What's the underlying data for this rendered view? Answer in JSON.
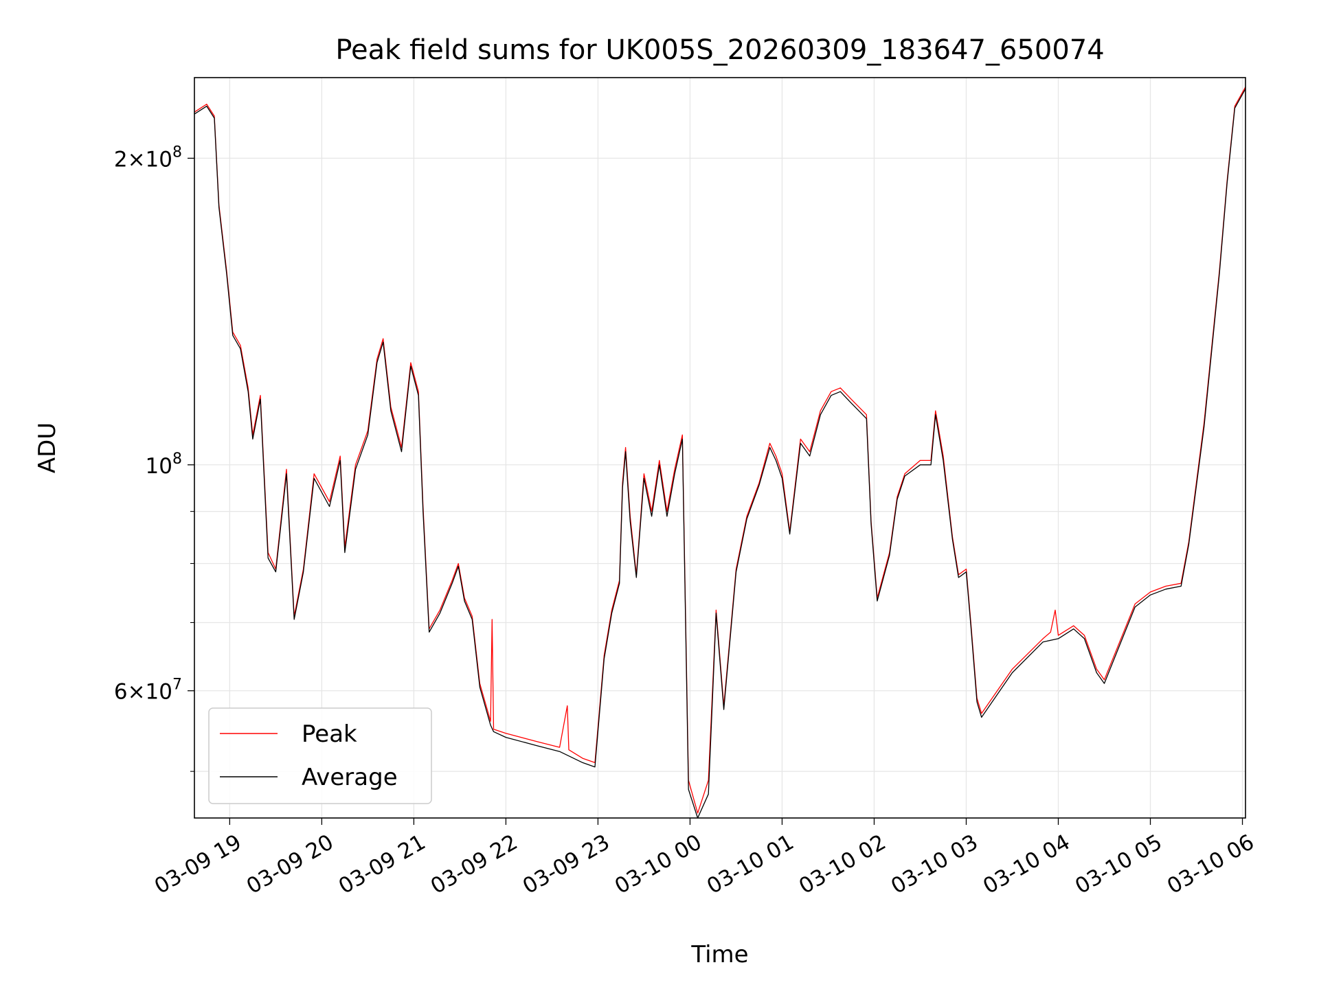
{
  "chart_data": {
    "type": "line",
    "title": "Peak field sums for UK005S_20260309_183647_650074",
    "xlabel": "Time",
    "ylabel": "ADU",
    "x_ticks": [
      "03-09 19",
      "03-09 20",
      "03-09 21",
      "03-09 22",
      "03-09 23",
      "03-10 00",
      "03-10 01",
      "03-10 02",
      "03-10 03",
      "03-10 04",
      "03-10 05",
      "03-10 06"
    ],
    "x_range": [
      "2026-03-09 18:37",
      "2026-03-10 06:02"
    ],
    "y_scale": "log",
    "y_range": [
      45000000,
      240000000
    ],
    "y_major_ticks": [
      {
        "value": 200000000,
        "mantissa": "2",
        "base": "10",
        "exp": "8"
      },
      {
        "value": 100000000,
        "mantissa": "",
        "base": "10",
        "exp": "8"
      },
      {
        "value": 60000000,
        "mantissa": "6",
        "base": "10",
        "exp": "7"
      }
    ],
    "y_minor_ticks": [
      50000000,
      70000000,
      80000000,
      90000000
    ],
    "grid": true,
    "legend_position": "lower-left",
    "series": [
      {
        "name": "Peak",
        "color": "#ff0000",
        "points": [
          [
            "2026-03-09 18:37",
            222000000
          ],
          [
            "2026-03-09 18:45",
            226000000
          ],
          [
            "2026-03-09 18:50",
            220000000
          ],
          [
            "2026-03-09 18:53",
            180000000
          ],
          [
            "2026-03-09 18:58",
            155000000
          ],
          [
            "2026-03-09 19:02",
            135000000
          ],
          [
            "2026-03-09 19:07",
            131000000
          ],
          [
            "2026-03-09 19:12",
            119000000
          ],
          [
            "2026-03-09 19:15",
            107000000
          ],
          [
            "2026-03-09 19:20",
            117000000
          ],
          [
            "2026-03-09 19:25",
            82000000
          ],
          [
            "2026-03-09 19:30",
            79000000
          ],
          [
            "2026-03-09 19:37",
            99000000
          ],
          [
            "2026-03-09 19:42",
            71000000
          ],
          [
            "2026-03-09 19:48",
            79000000
          ],
          [
            "2026-03-09 19:55",
            98000000
          ],
          [
            "2026-03-09 20:05",
            92000000
          ],
          [
            "2026-03-09 20:12",
            102000000
          ],
          [
            "2026-03-09 20:15",
            83000000
          ],
          [
            "2026-03-09 20:22",
            100000000
          ],
          [
            "2026-03-09 20:30",
            108000000
          ],
          [
            "2026-03-09 20:36",
            127000000
          ],
          [
            "2026-03-09 20:40",
            133000000
          ],
          [
            "2026-03-09 20:45",
            114000000
          ],
          [
            "2026-03-09 20:52",
            104000000
          ],
          [
            "2026-03-09 20:58",
            126000000
          ],
          [
            "2026-03-09 21:03",
            118000000
          ],
          [
            "2026-03-09 21:06",
            91000000
          ],
          [
            "2026-03-09 21:10",
            69000000
          ],
          [
            "2026-03-09 21:17",
            72000000
          ],
          [
            "2026-03-09 21:25",
            77000000
          ],
          [
            "2026-03-09 21:29",
            80000000
          ],
          [
            "2026-03-09 21:33",
            74000000
          ],
          [
            "2026-03-09 21:38",
            71000000
          ],
          [
            "2026-03-09 21:43",
            61000000
          ],
          [
            "2026-03-09 21:50",
            56000000
          ],
          [
            "2026-03-09 21:51",
            70500000
          ],
          [
            "2026-03-09 21:52",
            55000000
          ],
          [
            "2026-03-09 22:00",
            54500000
          ],
          [
            "2026-03-09 22:20",
            53500000
          ],
          [
            "2026-03-09 22:35",
            52800000
          ],
          [
            "2026-03-09 22:40",
            58000000
          ],
          [
            "2026-03-09 22:41",
            52500000
          ],
          [
            "2026-03-09 22:50",
            51500000
          ],
          [
            "2026-03-09 22:58",
            51000000
          ],
          [
            "2026-03-09 23:04",
            65000000
          ],
          [
            "2026-03-09 23:09",
            72000000
          ],
          [
            "2026-03-09 23:14",
            77000000
          ],
          [
            "2026-03-09 23:16",
            96000000
          ],
          [
            "2026-03-09 23:18",
            104000000
          ],
          [
            "2026-03-09 23:21",
            89000000
          ],
          [
            "2026-03-09 23:25",
            78000000
          ],
          [
            "2026-03-09 23:30",
            98000000
          ],
          [
            "2026-03-09 23:35",
            90000000
          ],
          [
            "2026-03-09 23:40",
            101000000
          ],
          [
            "2026-03-09 23:45",
            90000000
          ],
          [
            "2026-03-09 23:50",
            99000000
          ],
          [
            "2026-03-09 23:55",
            107000000
          ],
          [
            "2026-03-09 23:59",
            49000000
          ],
          [
            "2026-03-10 00:05",
            45500000
          ],
          [
            "2026-03-10 00:12",
            49000000
          ],
          [
            "2026-03-10 00:17",
            72000000
          ],
          [
            "2026-03-10 00:22",
            58000000
          ],
          [
            "2026-03-10 00:30",
            79000000
          ],
          [
            "2026-03-10 00:37",
            89000000
          ],
          [
            "2026-03-10 00:45",
            96000000
          ],
          [
            "2026-03-10 00:52",
            105000000
          ],
          [
            "2026-03-10 00:56",
            102000000
          ],
          [
            "2026-03-10 01:00",
            98000000
          ],
          [
            "2026-03-10 01:05",
            86000000
          ],
          [
            "2026-03-10 01:12",
            106000000
          ],
          [
            "2026-03-10 01:18",
            103000000
          ],
          [
            "2026-03-10 01:25",
            113000000
          ],
          [
            "2026-03-10 01:32",
            118000000
          ],
          [
            "2026-03-10 01:38",
            119000000
          ],
          [
            "2026-03-10 01:45",
            116000000
          ],
          [
            "2026-03-10 01:50",
            114000000
          ],
          [
            "2026-03-10 01:55",
            112000000
          ],
          [
            "2026-03-10 01:58",
            88000000
          ],
          [
            "2026-03-10 02:02",
            74000000
          ],
          [
            "2026-03-10 02:10",
            82000000
          ],
          [
            "2026-03-10 02:15",
            93000000
          ],
          [
            "2026-03-10 02:20",
            98000000
          ],
          [
            "2026-03-10 02:30",
            101000000
          ],
          [
            "2026-03-10 02:37",
            101000000
          ],
          [
            "2026-03-10 02:40",
            113000000
          ],
          [
            "2026-03-10 02:45",
            102000000
          ],
          [
            "2026-03-10 02:51",
            85000000
          ],
          [
            "2026-03-10 02:55",
            78000000
          ],
          [
            "2026-03-10 03:00",
            79000000
          ],
          [
            "2026-03-10 03:03",
            70000000
          ],
          [
            "2026-03-10 03:07",
            59000000
          ],
          [
            "2026-03-10 03:10",
            57000000
          ],
          [
            "2026-03-10 03:30",
            63000000
          ],
          [
            "2026-03-10 03:50",
            67500000
          ],
          [
            "2026-03-10 03:55",
            68500000
          ],
          [
            "2026-03-10 03:58",
            72000000
          ],
          [
            "2026-03-10 04:00",
            68000000
          ],
          [
            "2026-03-10 04:10",
            69500000
          ],
          [
            "2026-03-10 04:17",
            68000000
          ],
          [
            "2026-03-10 04:25",
            63000000
          ],
          [
            "2026-03-10 04:30",
            61500000
          ],
          [
            "2026-03-10 04:40",
            67000000
          ],
          [
            "2026-03-10 04:50",
            73000000
          ],
          [
            "2026-03-10 05:00",
            75000000
          ],
          [
            "2026-03-10 05:10",
            76000000
          ],
          [
            "2026-03-10 05:20",
            76500000
          ],
          [
            "2026-03-10 05:25",
            84000000
          ],
          [
            "2026-03-10 05:35",
            110000000
          ],
          [
            "2026-03-10 05:45",
            155000000
          ],
          [
            "2026-03-10 05:50",
            190000000
          ],
          [
            "2026-03-10 05:55",
            225000000
          ],
          [
            "2026-03-10 06:02",
            235000000
          ]
        ]
      },
      {
        "name": "Average",
        "color": "#000000",
        "points": [
          [
            "2026-03-09 18:37",
            221000000
          ],
          [
            "2026-03-09 18:45",
            225000000
          ],
          [
            "2026-03-09 18:50",
            219000000
          ],
          [
            "2026-03-09 18:53",
            179000000
          ],
          [
            "2026-03-09 18:58",
            154000000
          ],
          [
            "2026-03-09 19:02",
            134000000
          ],
          [
            "2026-03-09 19:07",
            130000000
          ],
          [
            "2026-03-09 19:12",
            118000000
          ],
          [
            "2026-03-09 19:15",
            106000000
          ],
          [
            "2026-03-09 19:20",
            116000000
          ],
          [
            "2026-03-09 19:25",
            81000000
          ],
          [
            "2026-03-09 19:30",
            78500000
          ],
          [
            "2026-03-09 19:37",
            98000000
          ],
          [
            "2026-03-09 19:42",
            70500000
          ],
          [
            "2026-03-09 19:48",
            78500000
          ],
          [
            "2026-03-09 19:55",
            97000000
          ],
          [
            "2026-03-09 20:05",
            91000000
          ],
          [
            "2026-03-09 20:12",
            101000000
          ],
          [
            "2026-03-09 20:15",
            82000000
          ],
          [
            "2026-03-09 20:22",
            99000000
          ],
          [
            "2026-03-09 20:30",
            107000000
          ],
          [
            "2026-03-09 20:36",
            126000000
          ],
          [
            "2026-03-09 20:40",
            132000000
          ],
          [
            "2026-03-09 20:45",
            113000000
          ],
          [
            "2026-03-09 20:52",
            103000000
          ],
          [
            "2026-03-09 20:58",
            125000000
          ],
          [
            "2026-03-09 21:03",
            117000000
          ],
          [
            "2026-03-09 21:06",
            90000000
          ],
          [
            "2026-03-09 21:10",
            68500000
          ],
          [
            "2026-03-09 21:17",
            71500000
          ],
          [
            "2026-03-09 21:25",
            76500000
          ],
          [
            "2026-03-09 21:29",
            79500000
          ],
          [
            "2026-03-09 21:33",
            73500000
          ],
          [
            "2026-03-09 21:38",
            70500000
          ],
          [
            "2026-03-09 21:43",
            60500000
          ],
          [
            "2026-03-09 21:50",
            55500000
          ],
          [
            "2026-03-09 21:52",
            54700000
          ],
          [
            "2026-03-09 22:00",
            54000000
          ],
          [
            "2026-03-09 22:20",
            53000000
          ],
          [
            "2026-03-09 22:35",
            52300000
          ],
          [
            "2026-03-09 22:50",
            51000000
          ],
          [
            "2026-03-09 22:58",
            50500000
          ],
          [
            "2026-03-09 23:04",
            64500000
          ],
          [
            "2026-03-09 23:09",
            71500000
          ],
          [
            "2026-03-09 23:14",
            76500000
          ],
          [
            "2026-03-09 23:16",
            95000000
          ],
          [
            "2026-03-09 23:18",
            103000000
          ],
          [
            "2026-03-09 23:21",
            88000000
          ],
          [
            "2026-03-09 23:25",
            77500000
          ],
          [
            "2026-03-09 23:30",
            97000000
          ],
          [
            "2026-03-09 23:35",
            89000000
          ],
          [
            "2026-03-09 23:40",
            100000000
          ],
          [
            "2026-03-09 23:45",
            89000000
          ],
          [
            "2026-03-09 23:50",
            98000000
          ],
          [
            "2026-03-09 23:55",
            106000000
          ],
          [
            "2026-03-09 23:59",
            48000000
          ],
          [
            "2026-03-10 00:05",
            45000000
          ],
          [
            "2026-03-10 00:12",
            47500000
          ],
          [
            "2026-03-10 00:17",
            71500000
          ],
          [
            "2026-03-10 00:22",
            57500000
          ],
          [
            "2026-03-10 00:30",
            78500000
          ],
          [
            "2026-03-10 00:37",
            88500000
          ],
          [
            "2026-03-10 00:45",
            95500000
          ],
          [
            "2026-03-10 00:52",
            104000000
          ],
          [
            "2026-03-10 00:56",
            101000000
          ],
          [
            "2026-03-10 01:00",
            97000000
          ],
          [
            "2026-03-10 01:05",
            85500000
          ],
          [
            "2026-03-10 01:12",
            105000000
          ],
          [
            "2026-03-10 01:18",
            102000000
          ],
          [
            "2026-03-10 01:25",
            112000000
          ],
          [
            "2026-03-10 01:32",
            117000000
          ],
          [
            "2026-03-10 01:38",
            118000000
          ],
          [
            "2026-03-10 01:45",
            115000000
          ],
          [
            "2026-03-10 01:50",
            113000000
          ],
          [
            "2026-03-10 01:55",
            111000000
          ],
          [
            "2026-03-10 01:58",
            87500000
          ],
          [
            "2026-03-10 02:02",
            73500000
          ],
          [
            "2026-03-10 02:10",
            81500000
          ],
          [
            "2026-03-10 02:15",
            92500000
          ],
          [
            "2026-03-10 02:20",
            97500000
          ],
          [
            "2026-03-10 02:30",
            100000000
          ],
          [
            "2026-03-10 02:37",
            100000000
          ],
          [
            "2026-03-10 02:40",
            112000000
          ],
          [
            "2026-03-10 02:45",
            101000000
          ],
          [
            "2026-03-10 02:51",
            84500000
          ],
          [
            "2026-03-10 02:55",
            77500000
          ],
          [
            "2026-03-10 03:00",
            78500000
          ],
          [
            "2026-03-10 03:03",
            69500000
          ],
          [
            "2026-03-10 03:07",
            58500000
          ],
          [
            "2026-03-10 03:10",
            56500000
          ],
          [
            "2026-03-10 03:30",
            62500000
          ],
          [
            "2026-03-10 03:50",
            67000000
          ],
          [
            "2026-03-10 04:00",
            67500000
          ],
          [
            "2026-03-10 04:10",
            69000000
          ],
          [
            "2026-03-10 04:17",
            67500000
          ],
          [
            "2026-03-10 04:25",
            62500000
          ],
          [
            "2026-03-10 04:30",
            61000000
          ],
          [
            "2026-03-10 04:40",
            66500000
          ],
          [
            "2026-03-10 04:50",
            72500000
          ],
          [
            "2026-03-10 05:00",
            74500000
          ],
          [
            "2026-03-10 05:10",
            75500000
          ],
          [
            "2026-03-10 05:20",
            76000000
          ],
          [
            "2026-03-10 05:25",
            83500000
          ],
          [
            "2026-03-10 05:35",
            109000000
          ],
          [
            "2026-03-10 05:45",
            154000000
          ],
          [
            "2026-03-10 05:50",
            189000000
          ],
          [
            "2026-03-10 05:55",
            224000000
          ],
          [
            "2026-03-10 06:02",
            234000000
          ]
        ]
      }
    ]
  }
}
